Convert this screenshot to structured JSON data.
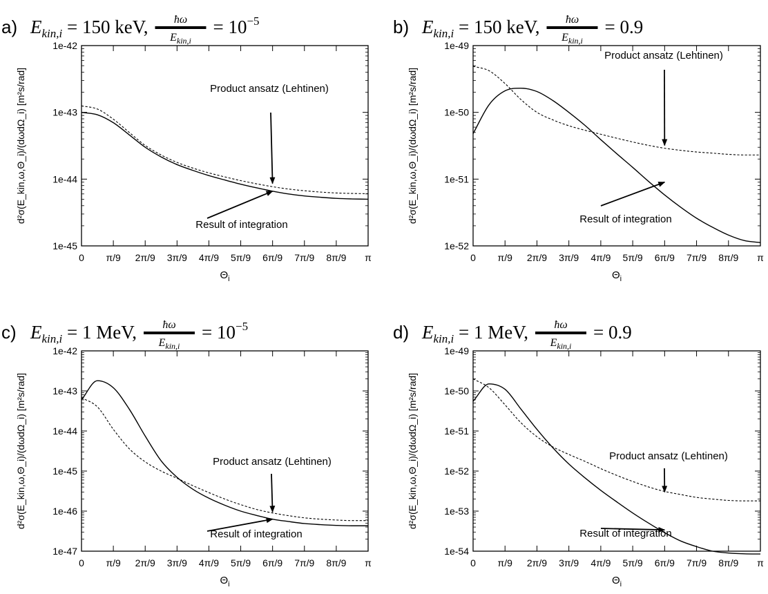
{
  "figure": {
    "x_axis_label": "Θ",
    "x_axis_label_sub": "i",
    "y_axis_label": "d²σ(E_kin,ω,Θ_i)/(dωdΩ_i) [m²s/rad]",
    "x_tick_labels": [
      "0",
      "π/9",
      "2π/9",
      "3π/9",
      "4π/9",
      "5π/9",
      "6π/9",
      "7π/9",
      "8π/9",
      "π"
    ],
    "colors": {
      "curve": "#000000",
      "background": "#ffffff"
    }
  },
  "chart_data": [
    {
      "type": "line",
      "panel_letter": "a)",
      "title": {
        "energy_lhs": "E",
        "energy_sub": "kin,i",
        "energy_value": " = 150 keV,",
        "frac_num": "ħω",
        "frac_den": "E",
        "frac_den_sub": "kin,i",
        "ratio_rhs": "= 10",
        "ratio_exp": "−5"
      },
      "xlabel": "Θi",
      "ylabel": "d²σ(Ekin,ω,Θi)/(dωdΩi) [m²s/rad]",
      "x_unit": "rad",
      "xlim": [
        0,
        3.14159
      ],
      "y_scale": "log",
      "ylim": [
        1e-45,
        1e-42
      ],
      "y_tick_labels": [
        "1e-45",
        "1e-44",
        "1e-43",
        "1e-42"
      ],
      "grid": false,
      "x": [
        0,
        0.1745,
        0.349,
        0.524,
        0.698,
        0.873,
        1.047,
        1.222,
        1.396,
        1.571,
        1.745,
        1.92,
        2.094,
        2.269,
        2.443,
        2.618,
        2.793,
        2.967,
        3.1416
      ],
      "series": [
        {
          "name": "Result of integration",
          "style": "solid",
          "values": [
            1e-43,
            9.2e-44,
            7e-44,
            4.6e-44,
            3e-44,
            2.15e-44,
            1.65e-44,
            1.35e-44,
            1.13e-44,
            9.7e-45,
            8.4e-45,
            7.4e-45,
            6.6e-45,
            6e-45,
            5.6e-45,
            5.35e-45,
            5.15e-45,
            5.05e-45,
            5e-45
          ]
        },
        {
          "name": "Product ansatz (Lehtinen)",
          "style": "dashed",
          "values": [
            1.25e-43,
            1.12e-43,
            7.9e-44,
            5e-44,
            3.2e-44,
            2.3e-44,
            1.78e-44,
            1.46e-44,
            1.24e-44,
            1.08e-44,
            9.5e-45,
            8.5e-45,
            7.7e-45,
            7.1e-45,
            6.7e-45,
            6.4e-45,
            6.2e-45,
            6.1e-45,
            6.05e-45
          ]
        }
      ],
      "annotations": [
        {
          "text": "Product ansatz (Lehtinen)",
          "arrow_to": [
            2.094,
            8.6e-45
          ]
        },
        {
          "text": "Result of integration",
          "arrow_to": [
            2.094,
            6.6e-45
          ]
        }
      ]
    },
    {
      "type": "line",
      "panel_letter": "b)",
      "title": {
        "energy_lhs": "E",
        "energy_sub": "kin,i",
        "energy_value": " = 150 keV,",
        "frac_num": "ħω",
        "frac_den": "E",
        "frac_den_sub": "kin,i",
        "ratio_rhs": "= 0.9",
        "ratio_exp": ""
      },
      "xlabel": "Θi",
      "ylabel": "d²σ(Ekin,ω,Θi)/(dωdΩi) [m²s/rad]",
      "x_unit": "rad",
      "xlim": [
        0,
        3.14159
      ],
      "y_scale": "log",
      "ylim": [
        1e-52,
        1e-49
      ],
      "y_tick_labels": [
        "1e-52",
        "1e-51",
        "1e-50",
        "1e-49"
      ],
      "grid": false,
      "x": [
        0,
        0.1745,
        0.349,
        0.524,
        0.698,
        0.873,
        1.047,
        1.222,
        1.396,
        1.571,
        1.745,
        1.92,
        2.094,
        2.269,
        2.443,
        2.618,
        2.793,
        2.967,
        3.1416
      ],
      "series": [
        {
          "name": "Result of integration",
          "style": "solid",
          "values": [
            4.8e-51,
            1.3e-50,
            2.1e-50,
            2.3e-50,
            2.05e-50,
            1.5e-50,
            1e-50,
            6.4e-51,
            3.9e-51,
            2.4e-51,
            1.5e-51,
            9.2e-52,
            5.8e-52,
            3.8e-52,
            2.6e-52,
            1.9e-52,
            1.45e-52,
            1.2e-52,
            1.12e-52
          ]
        },
        {
          "name": "Product ansatz (Lehtinen)",
          "style": "dashed",
          "values": [
            4.9e-50,
            4.2e-50,
            2.7e-50,
            1.55e-50,
            1e-50,
            7.7e-51,
            6.3e-51,
            5.4e-51,
            4.7e-51,
            4.1e-51,
            3.6e-51,
            3.2e-51,
            2.9e-51,
            2.7e-51,
            2.55e-51,
            2.45e-51,
            2.35e-51,
            2.3e-51,
            2.3e-51
          ]
        }
      ],
      "annotations": [
        {
          "text": "Product ansatz (Lehtinen)",
          "arrow_to": [
            2.094,
            3.2e-51
          ]
        },
        {
          "text": "Result of integration",
          "arrow_to": [
            2.094,
            9e-52
          ]
        }
      ]
    },
    {
      "type": "line",
      "panel_letter": "c)",
      "title": {
        "energy_lhs": "E",
        "energy_sub": "kin,i",
        "energy_value": " = 1 MeV,",
        "frac_num": "ħω",
        "frac_den": "E",
        "frac_den_sub": "kin,i",
        "ratio_rhs": "= 10",
        "ratio_exp": "−5"
      },
      "xlabel": "Θi",
      "ylabel": "d²σ(Ekin,ω,Θi)/(dωdΩi) [m²s/rad]",
      "x_unit": "rad",
      "xlim": [
        0,
        3.14159
      ],
      "y_scale": "log",
      "ylim": [
        1e-47,
        1e-42
      ],
      "y_tick_labels": [
        "1e-47",
        "1e-46",
        "1e-45",
        "1e-44",
        "1e-43",
        "1e-42"
      ],
      "grid": false,
      "x": [
        0,
        0.1745,
        0.349,
        0.524,
        0.698,
        0.873,
        1.047,
        1.222,
        1.396,
        1.571,
        1.745,
        1.92,
        2.094,
        2.269,
        2.443,
        2.618,
        2.793,
        2.967,
        3.1416
      ],
      "series": [
        {
          "name": "Result of integration",
          "style": "solid",
          "values": [
            6e-44,
            1.8e-43,
            1.2e-43,
            3.5e-44,
            7.5e-45,
            1.8e-45,
            7e-46,
            3.5e-46,
            2.1e-46,
            1.4e-46,
            1e-46,
            7.8e-47,
            6.3e-47,
            5.5e-47,
            4.9e-47,
            4.6e-47,
            4.4e-47,
            4.3e-47,
            4.3e-47
          ]
        },
        {
          "name": "Product ansatz (Lehtinen)",
          "style": "dashed",
          "values": [
            6.8e-44,
            4e-44,
            1.1e-44,
            3.6e-45,
            1.7e-45,
            1e-45,
            6.6e-46,
            4.3e-46,
            2.9e-46,
            2e-46,
            1.45e-46,
            1.1e-46,
            9e-47,
            7.7e-47,
            6.8e-47,
            6.3e-47,
            6e-47,
            5.8e-47,
            5.8e-47
          ]
        }
      ],
      "annotations": [
        {
          "text": "Product ansatz (Lehtinen)",
          "arrow_to": [
            2.094,
            9.5e-47
          ]
        },
        {
          "text": "Result of integration",
          "arrow_to": [
            2.094,
            6.3e-47
          ]
        }
      ]
    },
    {
      "type": "line",
      "panel_letter": "d)",
      "title": {
        "energy_lhs": "E",
        "energy_sub": "kin,i",
        "energy_value": " = 1 MeV,",
        "frac_num": "ħω",
        "frac_den": "E",
        "frac_den_sub": "kin,i",
        "ratio_rhs": "= 0.9",
        "ratio_exp": ""
      },
      "xlabel": "Θi",
      "ylabel": "d²σ(Ekin,ω,Θi)/(dωdΩi) [m²s/rad]",
      "x_unit": "rad",
      "xlim": [
        0,
        3.14159
      ],
      "y_scale": "log",
      "ylim": [
        1e-54,
        1e-49
      ],
      "y_tick_labels": [
        "1e-54",
        "1e-53",
        "1e-52",
        "1e-51",
        "1e-50",
        "1e-49"
      ],
      "grid": false,
      "x": [
        0,
        0.1745,
        0.349,
        0.524,
        0.698,
        0.873,
        1.047,
        1.222,
        1.396,
        1.571,
        1.745,
        1.92,
        2.094,
        2.269,
        2.443,
        2.618,
        2.793,
        2.967,
        3.1416
      ],
      "series": [
        {
          "name": "Result of integration",
          "style": "solid",
          "values": [
            5.5e-51,
            1.5e-50,
            1.1e-50,
            3.5e-51,
            1.1e-51,
            3.8e-52,
            1.5e-52,
            6.8e-53,
            3.3e-53,
            1.7e-53,
            9e-54,
            5e-54,
            2.9e-54,
            1.8e-54,
            1.3e-54,
            1e-54,
            9e-55,
            8.6e-55,
            8.5e-55
          ]
        },
        {
          "name": "Product ansatz (Lehtinen)",
          "style": "dashed",
          "values": [
            2e-50,
            1.2e-50,
            4.5e-51,
            1.6e-51,
            7.2e-52,
            4e-52,
            2.6e-52,
            1.75e-52,
            1.15e-52,
            7.8e-53,
            5.5e-53,
            4e-53,
            3.1e-53,
            2.6e-53,
            2.2e-53,
            2e-53,
            1.85e-53,
            1.8e-53,
            1.8e-53
          ]
        }
      ],
      "annotations": [
        {
          "text": "Product ansatz (Lehtinen)",
          "arrow_to": [
            2.094,
            3e-53
          ]
        },
        {
          "text": "Result of integration",
          "arrow_to": [
            2.094,
            3.4e-54
          ]
        }
      ]
    }
  ]
}
